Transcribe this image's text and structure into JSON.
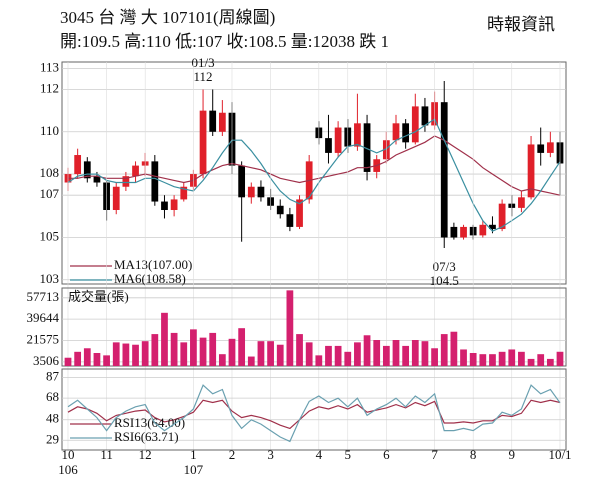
{
  "header": {
    "title": "3045 台 灣 大 107101(周線圖)",
    "source": "時報資訊",
    "quote": "開:109.5 高:110 低:107 收:108.5 量:12038 跌 1"
  },
  "chart_data": [
    {
      "type": "candlestick",
      "categories": [
        "10",
        null,
        null,
        null,
        "11",
        null,
        null,
        null,
        "12",
        null,
        null,
        null,
        null,
        "1",
        null,
        null,
        null,
        "2",
        null,
        null,
        null,
        "3",
        null,
        null,
        null,
        null,
        "4",
        null,
        null,
        "5",
        null,
        null,
        null,
        "6",
        null,
        null,
        null,
        null,
        "7",
        null,
        null,
        null,
        "8",
        null,
        null,
        null,
        "9",
        null,
        null,
        null,
        null,
        "10/1"
      ],
      "year_labels": {
        "0": "106",
        "13": "107"
      },
      "open": [
        107.6,
        108.0,
        108.6,
        107.9,
        107.6,
        106.3,
        107.4,
        107.9,
        108.4,
        108.6,
        106.7,
        106.3,
        106.8,
        107.4,
        108.0,
        111.0,
        110.0,
        110.9,
        108.4,
        106.9,
        107.4,
        106.9,
        106.5,
        106.1,
        105.5,
        106.8,
        110.2,
        109.7,
        109.0,
        110.2,
        109.3,
        110.4,
        108.1,
        108.7,
        109.6,
        110.4,
        109.5,
        111.2,
        110.3,
        111.4,
        105.5,
        105.0,
        105.5,
        105.1,
        105.6,
        105.4,
        106.6,
        106.4,
        106.9,
        109.4,
        109.0,
        109.5
      ],
      "high": [
        108.3,
        109.2,
        108.8,
        108.1,
        107.7,
        107.6,
        108.1,
        108.6,
        109.0,
        108.9,
        107.0,
        107.0,
        107.6,
        108.2,
        112,
        112.0,
        111.5,
        111.4,
        108.6,
        107.6,
        107.7,
        107.3,
        106.8,
        106.4,
        107.0,
        108.9,
        110.5,
        110.8,
        110.5,
        110.6,
        111.8,
        110.8,
        108.9,
        110.0,
        110.8,
        110.6,
        111.8,
        111.6,
        111.9,
        112.4,
        105.7,
        105.6,
        105.6,
        105.8,
        106.0,
        106.8,
        107.0,
        107.2,
        109.8,
        110.2,
        110.0,
        110
      ],
      "low": [
        107.2,
        107.8,
        107.6,
        107.4,
        105.8,
        106.1,
        107.2,
        107.6,
        107.9,
        106.5,
        105.9,
        106.0,
        106.7,
        107.2,
        107.8,
        109.8,
        109.8,
        108.0,
        104.8,
        106.6,
        106.7,
        106.3,
        105.9,
        105.3,
        105.4,
        106.6,
        109.4,
        108.5,
        108.8,
        109.0,
        109.1,
        107.7,
        107.8,
        108.5,
        109.4,
        109.2,
        109.4,
        110.0,
        110.1,
        104.5,
        104.9,
        104.9,
        104.9,
        105.0,
        105.2,
        105.3,
        106.0,
        106.2,
        106.8,
        108.4,
        108.8,
        107
      ],
      "close": [
        108.0,
        108.9,
        107.8,
        107.6,
        106.3,
        107.4,
        107.9,
        108.4,
        108.6,
        106.7,
        106.3,
        106.8,
        107.4,
        108.0,
        111.0,
        110.0,
        110.9,
        108.4,
        106.9,
        107.4,
        106.9,
        106.5,
        106.1,
        105.5,
        106.8,
        108.6,
        109.7,
        109.0,
        110.2,
        109.3,
        110.4,
        108.1,
        108.7,
        109.6,
        110.4,
        109.5,
        111.2,
        110.3,
        111.4,
        105.0,
        105.0,
        105.5,
        105.1,
        105.6,
        105.4,
        106.6,
        106.4,
        106.9,
        109.4,
        109.0,
        109.5,
        108.5
      ],
      "up_color": "#e0202a",
      "down_color": "#000000",
      "series": [
        {
          "name": "MA13(107.00)",
          "color": "#a0304a",
          "values": [
            107.8,
            107.8,
            107.9,
            107.9,
            107.8,
            107.8,
            107.8,
            107.9,
            108.0,
            107.9,
            107.8,
            107.7,
            107.6,
            107.7,
            108.0,
            108.2,
            108.4,
            108.5,
            108.4,
            108.3,
            108.2,
            108.0,
            107.8,
            107.7,
            107.6,
            107.7,
            107.8,
            107.9,
            108.0,
            108.1,
            108.3,
            108.3,
            108.4,
            108.6,
            108.9,
            109.1,
            109.3,
            109.5,
            109.8,
            109.6,
            109.3,
            109.0,
            108.7,
            108.3,
            108.0,
            107.7,
            107.4,
            107.2,
            107.3,
            107.2,
            107.1,
            107.0
          ]
        },
        {
          "name": "MA6(108.58)",
          "color": "#3a8fa0",
          "values": [
            107.6,
            107.9,
            108.0,
            108.0,
            107.7,
            107.6,
            107.6,
            107.6,
            107.8,
            107.8,
            107.6,
            107.4,
            107.3,
            107.2,
            107.7,
            108.3,
            109.0,
            109.6,
            109.6,
            109.1,
            108.5,
            107.8,
            107.2,
            106.8,
            106.6,
            106.9,
            107.6,
            108.2,
            108.8,
            109.3,
            109.4,
            109.2,
            109.0,
            109.2,
            109.6,
            109.8,
            110.0,
            110.3,
            110.6,
            109.6,
            108.6,
            107.6,
            106.6,
            105.8,
            105.3,
            105.5,
            105.8,
            106.1,
            106.6,
            107.2,
            107.9,
            108.58
          ]
        }
      ],
      "annotations": [
        {
          "date": "01/3",
          "value": 112,
          "at": "high"
        },
        {
          "date": "07/3",
          "value": 104.5,
          "at": "low"
        }
      ],
      "ylim": [
        102.8,
        113.3
      ],
      "yticks": [
        113,
        112,
        110,
        108,
        107,
        105,
        103
      ],
      "grid": true
    },
    {
      "type": "bar",
      "title": "成交量(張)",
      "color": "#d4206e",
      "values": [
        7000,
        12000,
        15000,
        11000,
        9000,
        20000,
        19000,
        18000,
        21000,
        27000,
        45000,
        28000,
        20000,
        31000,
        24000,
        28000,
        10000,
        23000,
        32000,
        8000,
        21000,
        21000,
        18000,
        64000,
        27000,
        20000,
        9000,
        17000,
        17000,
        12000,
        20000,
        26000,
        22000,
        17000,
        22000,
        17000,
        22000,
        21000,
        15000,
        27000,
        29000,
        14000,
        11000,
        10000,
        10000,
        12000,
        14000,
        12000,
        6000,
        10000,
        6000,
        12038
      ],
      "ylim": [
        0,
        66000
      ],
      "yticks": [
        57713,
        39644,
        21575,
        3506
      ],
      "grid": true
    },
    {
      "type": "line",
      "series": [
        {
          "name": "RSI13(64.00)",
          "color": "#a0304a",
          "values": [
            55,
            60,
            58,
            54,
            47,
            52,
            54,
            56,
            57,
            50,
            46,
            48,
            51,
            55,
            66,
            64,
            66,
            56,
            50,
            52,
            50,
            47,
            43,
            40,
            48,
            56,
            60,
            58,
            61,
            58,
            62,
            55,
            57,
            59,
            62,
            59,
            64,
            61,
            65,
            45,
            45,
            46,
            45,
            47,
            47,
            52,
            51,
            54,
            66,
            64,
            66,
            64
          ]
        },
        {
          "name": "RSI6(63.71)",
          "color": "#6aa0b0",
          "values": [
            60,
            66,
            58,
            50,
            38,
            50,
            56,
            60,
            62,
            45,
            38,
            44,
            50,
            58,
            80,
            72,
            76,
            52,
            40,
            48,
            44,
            38,
            32,
            28,
            48,
            65,
            70,
            64,
            68,
            60,
            68,
            52,
            58,
            62,
            68,
            60,
            70,
            64,
            72,
            38,
            38,
            40,
            38,
            44,
            45,
            55,
            52,
            58,
            80,
            72,
            76,
            63.71
          ]
        }
      ],
      "ylim": [
        20,
        95
      ],
      "yticks": [
        87,
        68,
        48,
        29
      ],
      "grid": true
    }
  ]
}
